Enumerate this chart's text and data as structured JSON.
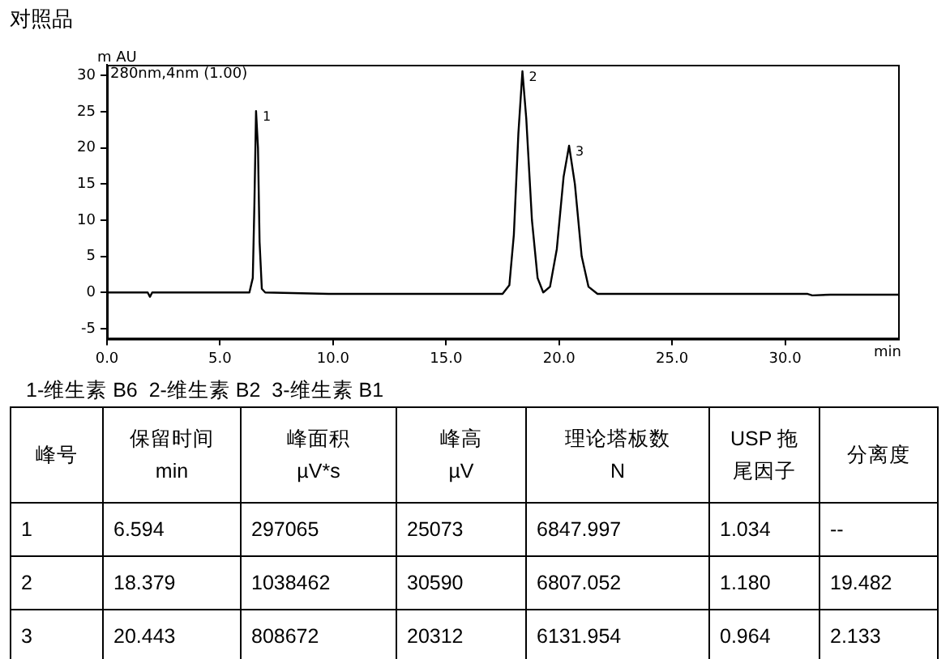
{
  "chart_data": [
    {
      "type": "line",
      "title": "对照品",
      "xlabel": "min",
      "ylabel": "m AU",
      "xlim": [
        0,
        35
      ],
      "ylim": [
        -6.4,
        31.5
      ],
      "xticks": [
        {
          "value": 0,
          "label": "0.0"
        },
        {
          "value": 5,
          "label": "5.0"
        },
        {
          "value": 10,
          "label": "10.0"
        },
        {
          "value": 15,
          "label": "15.0"
        },
        {
          "value": 20,
          "label": "20.0"
        },
        {
          "value": 25,
          "label": "25.0"
        },
        {
          "value": 30,
          "label": "30.0"
        }
      ],
      "yticks": [
        -5,
        0,
        5,
        10,
        15,
        20,
        25,
        30
      ],
      "grid": false,
      "legend": false,
      "series": [
        {
          "color": "#000000",
          "x": [
            0,
            1.8,
            1.9,
            2.0,
            6.3,
            6.45,
            6.52,
            6.594,
            6.68,
            6.75,
            6.85,
            7.0,
            9.8,
            17.5,
            17.8,
            18.0,
            18.2,
            18.379,
            18.55,
            18.8,
            19.05,
            19.3,
            19.6,
            19.9,
            20.2,
            20.443,
            20.7,
            21.0,
            21.3,
            21.7,
            31,
            31.2,
            32,
            35
          ],
          "values": [
            0,
            0,
            -0.6,
            0,
            0,
            2,
            12,
            25.1,
            20,
            7,
            0.5,
            0,
            -0.2,
            -0.2,
            1,
            8,
            22,
            30.6,
            24,
            10,
            2,
            0,
            0.8,
            6,
            16,
            20.3,
            15,
            5,
            0.8,
            -0.2,
            -0.2,
            -0.4,
            -0.3,
            -0.3
          ]
        }
      ],
      "annotations": [
        "280nm,4nm (1.00)",
        "1-维生素 B6  2-维生素 B2  3-维生素 B1",
        {
          "text": "1",
          "x": 6.594,
          "y": 25.1
        },
        {
          "text": "2",
          "x": 18.379,
          "y": 30.6
        },
        {
          "text": "3",
          "x": 20.443,
          "y": 20.3
        }
      ]
    },
    {
      "type": "other",
      "categories": [
        "峰号",
        "保留时间\nmin",
        "峰面积\nµV*s",
        "峰高\nµV",
        "理论塔板数\nN",
        "USP 拖尾因子",
        "分离度"
      ],
      "cell_labels": [
        [
          "1",
          "6.594",
          "297065",
          "25073",
          "6847.997",
          "1.034",
          "--"
        ],
        [
          "2",
          "18.379",
          "1038462",
          "30590",
          "6807.052",
          "1.180",
          "19.482"
        ],
        [
          "3",
          "20.443",
          "808672",
          "20312",
          "6131.954",
          "0.964",
          "2.133"
        ]
      ]
    }
  ]
}
